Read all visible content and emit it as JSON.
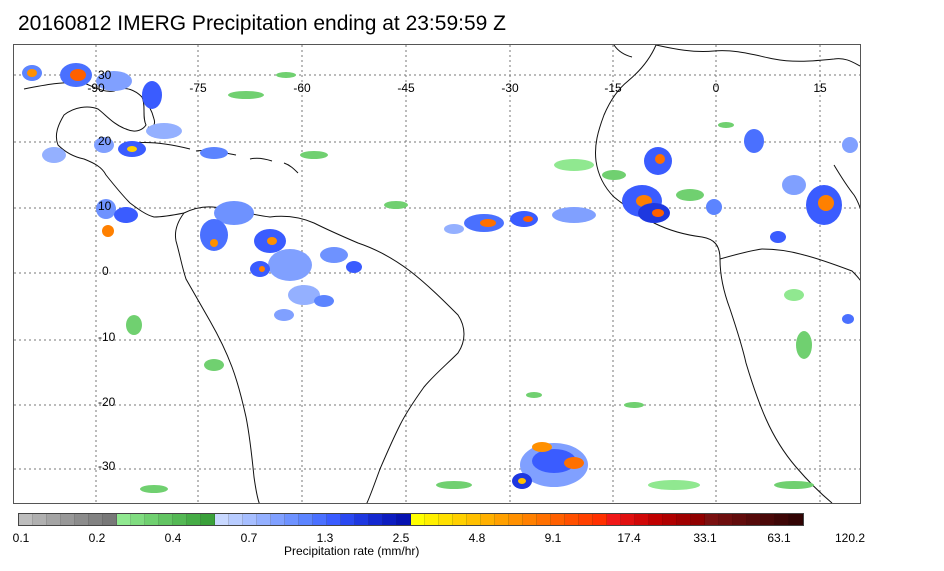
{
  "title": "20160812 IMERG Precipitation ending at 23:59:59 Z",
  "longitude_labels": [
    "-90",
    "-75",
    "-60",
    "-45",
    "-30",
    "-15",
    "0",
    "15"
  ],
  "latitude_labels": [
    "30",
    "20",
    "10",
    "0",
    "-10",
    "-20",
    "-30"
  ],
  "colorbar": {
    "tick_labels": [
      "0.1",
      "0.2",
      "0.4",
      "0.7",
      "1.3",
      "2.5",
      "4.8",
      "9.1",
      "17.4",
      "33.1",
      "63.1",
      "120.2"
    ],
    "label": "Precipitation rate (mm/hr)",
    "colors": [
      "#bdbdbd",
      "#b0b0b0",
      "#a4a4a4",
      "#989898",
      "#8c8c8c",
      "#828282",
      "#787878",
      "#90e890",
      "#80dc80",
      "#70d070",
      "#62c462",
      "#54b854",
      "#46ac46",
      "#3aa03a",
      "#c8d8ff",
      "#b8ccff",
      "#a6beff",
      "#94b0ff",
      "#80a0ff",
      "#6e92ff",
      "#5c84ff",
      "#4a70ff",
      "#3a5cff",
      "#2a48f0",
      "#1e38e0",
      "#1428d0",
      "#0c1cc0",
      "#0612b0",
      "#ffff00",
      "#fff000",
      "#ffe000",
      "#ffd000",
      "#ffc000",
      "#ffb000",
      "#ffa000",
      "#ff9000",
      "#ff8000",
      "#ff7000",
      "#ff6000",
      "#ff5000",
      "#ff4000",
      "#ff3000",
      "#f01818",
      "#e01010",
      "#d00808",
      "#c00000",
      "#b00000",
      "#a00000",
      "#900000",
      "#7a1010",
      "#6e0e0e",
      "#620c0c",
      "#560a0a",
      "#4a0808",
      "#3e0606",
      "#320404"
    ]
  }
}
